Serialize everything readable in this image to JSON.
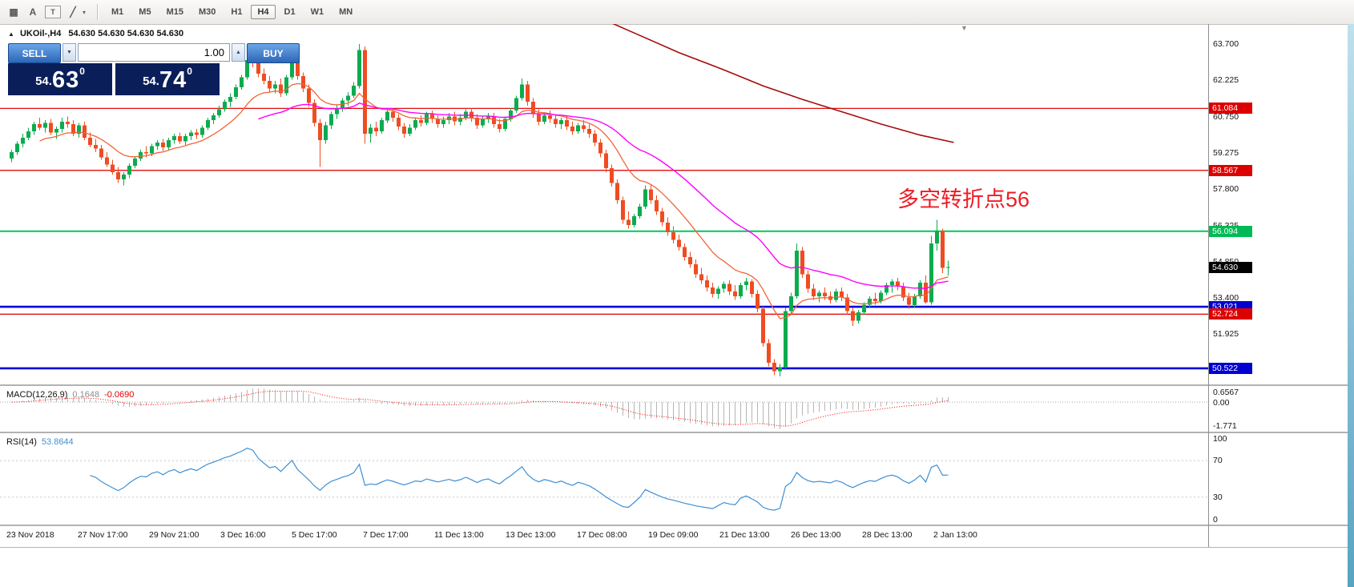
{
  "toolbar": {
    "tools": [
      {
        "name": "chart-grid-icon",
        "glyph": "▦"
      },
      {
        "name": "font-tool-icon",
        "glyph": "A"
      },
      {
        "name": "text-tool-icon",
        "glyph": "T",
        "boxed": true
      },
      {
        "name": "line-tools-icon",
        "glyph": "╱"
      }
    ],
    "tool_dropdown_glyph": "▾",
    "timeframes": [
      "M1",
      "M5",
      "M15",
      "M30",
      "H1",
      "H4",
      "D1",
      "W1",
      "MN"
    ],
    "active_timeframe": "H4"
  },
  "trade_panel": {
    "sell_label": "SELL",
    "buy_label": "BUY",
    "volume": "1.00",
    "spinner_up": "▲",
    "spinner_down": "▼",
    "bid": {
      "prefix": "54.",
      "big": "63",
      "sup": "0"
    },
    "ask": {
      "prefix": "54.",
      "big": "74",
      "sup": "0"
    }
  },
  "chart": {
    "collapse_glyph": "▲",
    "shift_marker_glyph": "▼",
    "symbol": "UKOil-,H4",
    "ohlc": "54.630 54.630 54.630 54.630",
    "annotation": "多空转折点56",
    "current_price": "54.630",
    "price_axis": [
      "63.700",
      "62.225",
      "60.750",
      "59.275",
      "57.800",
      "56.325",
      "54.850",
      "53.400",
      "51.925"
    ],
    "hlines": [
      {
        "price": 61.084,
        "label": "61.084",
        "type": "red"
      },
      {
        "price": 58.567,
        "label": "58.567",
        "type": "red"
      },
      {
        "price": 56.094,
        "label": "56.094",
        "type": "green"
      },
      {
        "price": 53.021,
        "label": "53.021",
        "type": "blue"
      },
      {
        "price": 52.724,
        "label": "52.724",
        "type": "red"
      },
      {
        "price": 50.522,
        "label": "50.522",
        "type": "blue"
      }
    ],
    "slow_ma_points": [
      [
        105,
        64.75
      ],
      [
        112,
        64.05
      ],
      [
        119,
        63.35
      ],
      [
        127,
        62.65
      ],
      [
        134,
        62.0
      ],
      [
        141,
        61.45
      ],
      [
        148,
        60.95
      ],
      [
        155,
        60.45
      ],
      [
        162,
        60.0
      ],
      [
        168,
        59.7
      ]
    ],
    "candles": [
      [
        59.05,
        59.4,
        58.9,
        59.3
      ],
      [
        59.3,
        59.75,
        59.2,
        59.65
      ],
      [
        59.65,
        60.05,
        59.5,
        59.9
      ],
      [
        59.9,
        60.3,
        59.8,
        60.15
      ],
      [
        60.15,
        60.55,
        60.0,
        60.45
      ],
      [
        60.45,
        60.7,
        60.2,
        60.3
      ],
      [
        60.3,
        60.6,
        60.1,
        60.5
      ],
      [
        60.5,
        60.65,
        60.0,
        60.1
      ],
      [
        60.1,
        60.35,
        59.85,
        60.25
      ],
      [
        60.25,
        60.7,
        60.1,
        60.55
      ],
      [
        60.55,
        60.75,
        60.3,
        60.45
      ],
      [
        60.45,
        60.6,
        59.95,
        60.05
      ],
      [
        60.05,
        60.5,
        59.9,
        60.4
      ],
      [
        60.4,
        60.55,
        59.8,
        59.9
      ],
      [
        59.9,
        60.1,
        59.5,
        59.6
      ],
      [
        59.6,
        59.85,
        59.3,
        59.45
      ],
      [
        59.45,
        59.6,
        59.0,
        59.1
      ],
      [
        59.1,
        59.3,
        58.7,
        58.8
      ],
      [
        58.8,
        59.0,
        58.4,
        58.5
      ],
      [
        58.5,
        58.7,
        58.05,
        58.2
      ],
      [
        58.2,
        58.5,
        57.95,
        58.4
      ],
      [
        58.4,
        58.85,
        58.25,
        58.75
      ],
      [
        58.75,
        59.15,
        58.65,
        59.05
      ],
      [
        59.05,
        59.4,
        58.95,
        59.3
      ],
      [
        59.3,
        59.55,
        59.1,
        59.25
      ],
      [
        59.25,
        59.65,
        59.15,
        59.55
      ],
      [
        59.55,
        59.8,
        59.4,
        59.7
      ],
      [
        59.7,
        59.85,
        59.35,
        59.5
      ],
      [
        59.5,
        59.9,
        59.4,
        59.8
      ],
      [
        59.8,
        60.05,
        59.65,
        59.95
      ],
      [
        59.95,
        60.1,
        59.65,
        59.75
      ],
      [
        59.75,
        60.05,
        59.6,
        59.95
      ],
      [
        59.95,
        60.2,
        59.8,
        60.1
      ],
      [
        60.1,
        60.25,
        59.85,
        60.0
      ],
      [
        60.0,
        60.4,
        59.9,
        60.3
      ],
      [
        60.3,
        60.7,
        60.2,
        60.6
      ],
      [
        60.6,
        60.9,
        60.45,
        60.8
      ],
      [
        60.8,
        61.2,
        60.7,
        61.05
      ],
      [
        61.05,
        61.45,
        60.95,
        61.35
      ],
      [
        61.35,
        61.7,
        61.15,
        61.55
      ],
      [
        61.55,
        62.05,
        61.45,
        61.95
      ],
      [
        61.95,
        62.45,
        61.85,
        62.35
      ],
      [
        62.35,
        63.25,
        62.25,
        63.05
      ],
      [
        63.05,
        63.6,
        62.75,
        62.95
      ],
      [
        62.95,
        63.15,
        62.35,
        62.5
      ],
      [
        62.5,
        62.7,
        62.05,
        62.2
      ],
      [
        62.2,
        62.4,
        61.75,
        61.9
      ],
      [
        61.9,
        62.2,
        61.7,
        62.05
      ],
      [
        62.05,
        62.3,
        61.55,
        61.7
      ],
      [
        61.7,
        62.45,
        61.6,
        62.35
      ],
      [
        62.35,
        63.35,
        62.25,
        63.15
      ],
      [
        63.15,
        63.3,
        62.25,
        62.4
      ],
      [
        62.4,
        62.55,
        61.75,
        61.9
      ],
      [
        61.9,
        62.05,
        61.15,
        61.3
      ],
      [
        61.3,
        61.45,
        60.35,
        60.5
      ],
      [
        60.5,
        60.65,
        58.7,
        59.8
      ],
      [
        59.8,
        60.55,
        59.65,
        60.4
      ],
      [
        60.4,
        60.95,
        60.25,
        60.85
      ],
      [
        60.85,
        61.25,
        60.65,
        61.1
      ],
      [
        61.1,
        61.5,
        60.95,
        61.4
      ],
      [
        61.4,
        61.75,
        61.2,
        61.6
      ],
      [
        61.6,
        62.15,
        61.5,
        62.0
      ],
      [
        62.0,
        63.7,
        61.9,
        63.45
      ],
      [
        63.45,
        63.6,
        59.65,
        60.05
      ],
      [
        60.05,
        60.45,
        59.7,
        60.3
      ],
      [
        60.3,
        60.55,
        59.95,
        60.15
      ],
      [
        60.15,
        60.7,
        60.05,
        60.6
      ],
      [
        60.6,
        61.05,
        60.5,
        60.95
      ],
      [
        60.95,
        61.1,
        60.55,
        60.7
      ],
      [
        60.7,
        60.85,
        60.2,
        60.35
      ],
      [
        60.35,
        60.5,
        59.9,
        60.05
      ],
      [
        60.05,
        60.45,
        59.95,
        60.3
      ],
      [
        60.3,
        60.7,
        60.2,
        60.6
      ],
      [
        60.6,
        60.8,
        60.35,
        60.5
      ],
      [
        60.5,
        60.95,
        60.4,
        60.85
      ],
      [
        60.85,
        61.0,
        60.5,
        60.65
      ],
      [
        60.65,
        60.8,
        60.3,
        60.45
      ],
      [
        60.45,
        60.75,
        60.3,
        60.6
      ],
      [
        60.6,
        60.9,
        60.45,
        60.75
      ],
      [
        60.75,
        60.95,
        60.4,
        60.55
      ],
      [
        60.55,
        60.85,
        60.4,
        60.7
      ],
      [
        60.7,
        61.05,
        60.6,
        60.95
      ],
      [
        60.95,
        61.1,
        60.55,
        60.7
      ],
      [
        60.7,
        60.85,
        60.25,
        60.4
      ],
      [
        60.4,
        60.75,
        60.3,
        60.65
      ],
      [
        60.65,
        60.9,
        60.5,
        60.75
      ],
      [
        60.75,
        60.9,
        60.3,
        60.45
      ],
      [
        60.45,
        60.65,
        60.1,
        60.25
      ],
      [
        60.25,
        60.75,
        60.15,
        60.65
      ],
      [
        60.65,
        61.1,
        60.55,
        61.0
      ],
      [
        61.0,
        61.6,
        60.9,
        61.5
      ],
      [
        61.5,
        62.3,
        61.4,
        62.05
      ],
      [
        62.05,
        62.2,
        61.2,
        61.35
      ],
      [
        61.35,
        61.5,
        60.7,
        60.85
      ],
      [
        60.85,
        61.05,
        60.4,
        60.55
      ],
      [
        60.55,
        60.9,
        60.45,
        60.8
      ],
      [
        60.8,
        61.0,
        60.5,
        60.65
      ],
      [
        60.65,
        60.85,
        60.3,
        60.45
      ],
      [
        60.45,
        60.7,
        60.25,
        60.6
      ],
      [
        60.6,
        60.8,
        60.2,
        60.35
      ],
      [
        60.35,
        60.55,
        60.0,
        60.15
      ],
      [
        60.15,
        60.5,
        60.05,
        60.4
      ],
      [
        60.4,
        60.6,
        60.1,
        60.25
      ],
      [
        60.25,
        60.45,
        59.9,
        60.05
      ],
      [
        60.05,
        60.2,
        59.55,
        59.7
      ],
      [
        59.7,
        59.85,
        59.1,
        59.25
      ],
      [
        59.25,
        59.4,
        58.5,
        58.65
      ],
      [
        58.65,
        58.8,
        57.9,
        58.05
      ],
      [
        58.05,
        58.2,
        57.2,
        57.35
      ],
      [
        57.35,
        57.5,
        56.4,
        56.55
      ],
      [
        56.55,
        56.9,
        56.2,
        56.35
      ],
      [
        56.35,
        56.8,
        56.25,
        56.7
      ],
      [
        56.7,
        57.2,
        56.6,
        57.1
      ],
      [
        57.1,
        57.95,
        57.0,
        57.8
      ],
      [
        57.8,
        58.0,
        57.2,
        57.35
      ],
      [
        57.35,
        57.55,
        56.75,
        56.9
      ],
      [
        56.9,
        57.05,
        56.3,
        56.45
      ],
      [
        56.45,
        56.65,
        55.9,
        56.05
      ],
      [
        56.05,
        56.3,
        55.6,
        55.75
      ],
      [
        55.75,
        55.95,
        55.3,
        55.45
      ],
      [
        55.45,
        55.6,
        54.9,
        55.05
      ],
      [
        55.05,
        55.25,
        54.6,
        54.75
      ],
      [
        54.75,
        54.95,
        54.2,
        54.35
      ],
      [
        54.35,
        54.6,
        53.95,
        54.1
      ],
      [
        54.1,
        54.3,
        53.65,
        53.8
      ],
      [
        53.8,
        54.0,
        53.4,
        53.55
      ],
      [
        53.55,
        53.85,
        53.35,
        53.75
      ],
      [
        53.75,
        54.05,
        53.6,
        53.95
      ],
      [
        53.95,
        54.1,
        53.5,
        53.65
      ],
      [
        53.65,
        53.9,
        53.3,
        53.45
      ],
      [
        53.45,
        54.0,
        53.35,
        53.9
      ],
      [
        53.9,
        54.2,
        53.7,
        54.05
      ],
      [
        54.05,
        54.15,
        53.4,
        53.55
      ],
      [
        53.55,
        53.7,
        52.8,
        52.95
      ],
      [
        52.95,
        53.05,
        51.4,
        51.55
      ],
      [
        51.55,
        51.7,
        50.6,
        50.75
      ],
      [
        50.75,
        50.9,
        50.25,
        50.4
      ],
      [
        50.4,
        50.7,
        50.2,
        50.55
      ],
      [
        50.55,
        53.0,
        50.45,
        52.85
      ],
      [
        52.85,
        53.6,
        52.7,
        53.45
      ],
      [
        53.45,
        55.6,
        53.35,
        55.3
      ],
      [
        55.3,
        55.45,
        54.2,
        54.35
      ],
      [
        54.35,
        54.5,
        53.6,
        53.75
      ],
      [
        53.75,
        53.95,
        53.3,
        53.45
      ],
      [
        53.45,
        53.7,
        53.2,
        53.6
      ],
      [
        53.6,
        53.8,
        53.3,
        53.45
      ],
      [
        53.45,
        53.65,
        53.15,
        53.3
      ],
      [
        53.3,
        53.75,
        53.2,
        53.65
      ],
      [
        53.65,
        53.8,
        53.25,
        53.4
      ],
      [
        53.4,
        53.55,
        52.7,
        52.85
      ],
      [
        52.85,
        53.0,
        52.25,
        52.45
      ],
      [
        52.45,
        52.9,
        52.35,
        52.8
      ],
      [
        52.8,
        53.2,
        52.7,
        53.1
      ],
      [
        53.1,
        53.45,
        53.0,
        53.35
      ],
      [
        53.35,
        53.6,
        53.1,
        53.25
      ],
      [
        53.25,
        53.7,
        53.15,
        53.6
      ],
      [
        53.6,
        54.0,
        53.5,
        53.9
      ],
      [
        53.9,
        54.15,
        53.6,
        54.05
      ],
      [
        54.05,
        54.2,
        53.7,
        53.85
      ],
      [
        53.85,
        54.0,
        53.25,
        53.4
      ],
      [
        53.4,
        53.6,
        52.95,
        53.1
      ],
      [
        53.1,
        53.55,
        53.0,
        53.45
      ],
      [
        53.45,
        54.1,
        53.35,
        54.0
      ],
      [
        54.0,
        54.3,
        53.15,
        53.2
      ],
      [
        53.2,
        55.9,
        53.1,
        55.6
      ],
      [
        55.6,
        56.55,
        55.3,
        56.1
      ],
      [
        56.1,
        56.2,
        54.4,
        54.6
      ],
      [
        54.6,
        54.9,
        54.3,
        54.63
      ]
    ]
  },
  "indicators": {
    "macd": {
      "name": "MACD(12,26,9)",
      "value_main": "0.1648",
      "value_signal": "-0.0690",
      "axis_max": "0.6567",
      "axis_zero": "0.00",
      "axis_min": "-1.771",
      "fast": 12,
      "slow": 26,
      "signal_period": 9
    },
    "rsi": {
      "name": "RSI(14)",
      "value": "53.8644",
      "period": 14,
      "axis_top": "100",
      "axis_hi": "70",
      "axis_lo": "30",
      "axis_bottom": "0",
      "levels": [
        70,
        30
      ]
    }
  },
  "time_axis": [
    "23 Nov 2018",
    "27 Nov 17:00",
    "29 Nov 21:00",
    "3 Dec 16:00",
    "5 Dec 17:00",
    "7 Dec 17:00",
    "11 Dec 13:00",
    "13 Dec 13:00",
    "17 Dec 08:00",
    "19 Dec 09:00",
    "21 Dec 13:00",
    "26 Dec 13:00",
    "28 Dec 13:00",
    "2 Jan 13:00"
  ],
  "colors": {
    "up": "#0cab4e",
    "down": "#f04c22",
    "ma_fast": "#f0653a",
    "ma_mid": "#ff00ff",
    "ma_slow": "#a50b0b",
    "line_red": "#e00f0f",
    "line_blue": "#0505d8",
    "line_green": "#00c85d",
    "badge_red": "#dd0000",
    "badge_blue": "#0000d0",
    "badge_green": "#00bb55",
    "badge_black": "#000000",
    "macd_hist": "#b6b6b6",
    "macd_signal": "#ff0000",
    "rsi_line": "#3e8fd4",
    "annotation": "#ed1c24"
  }
}
